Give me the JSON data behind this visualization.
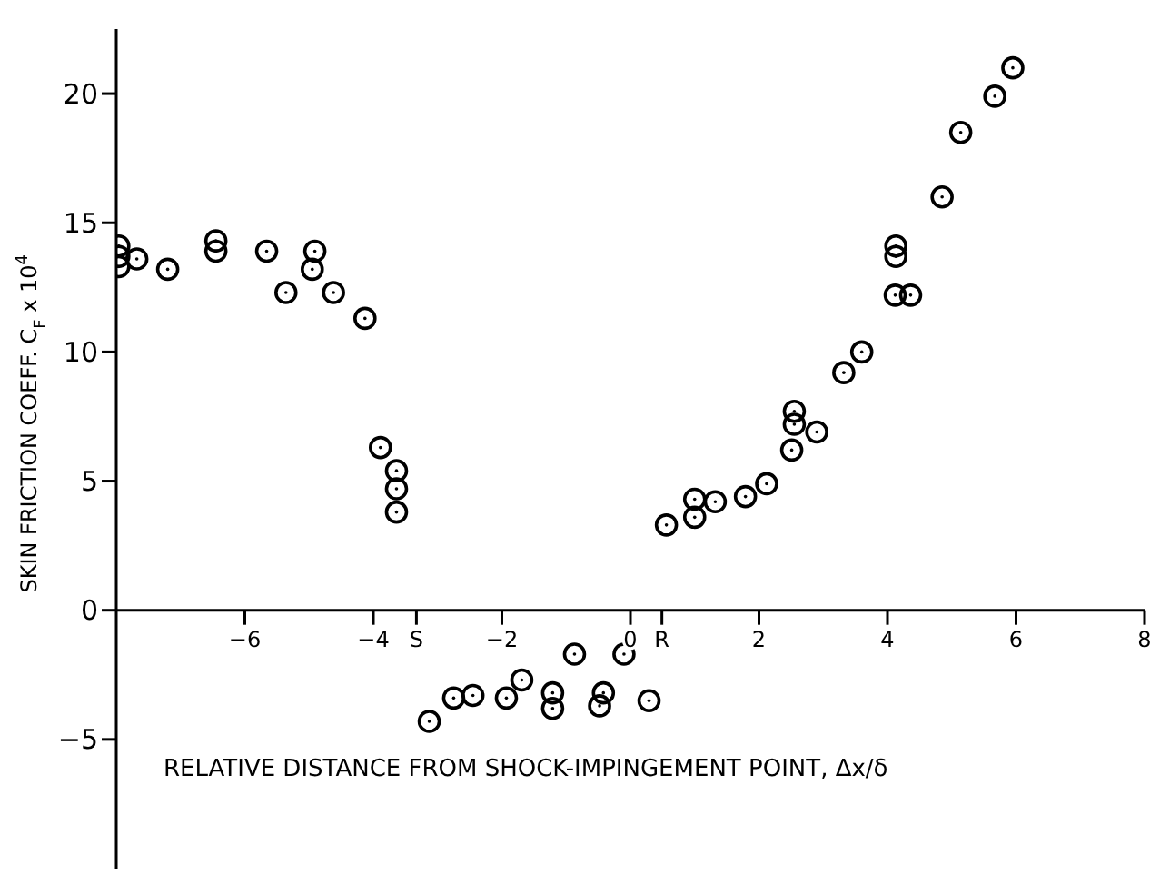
{
  "chart_data": {
    "type": "scatter",
    "xlabel": "RELATIVE DISTANCE FROM SHOCK-IMPINGEMENT POINT, Δx/δ",
    "ylabel": "SKIN FRICTION COEFF.  C$_{F}$ x 10$^{4}$",
    "x": [
      -7.96,
      -7.96,
      -7.96,
      -7.68,
      -7.2,
      -6.45,
      -6.45,
      -5.66,
      -5.36,
      -4.91,
      -4.95,
      -4.62,
      -4.13,
      -3.89,
      -3.64,
      -3.64,
      -3.64,
      -3.13,
      -2.75,
      -2.45,
      -1.93,
      -1.69,
      -1.21,
      -1.21,
      -0.87,
      -0.42,
      -0.48,
      -0.1,
      0.29,
      0.56,
      1.0,
      1.0,
      1.32,
      1.79,
      2.12,
      2.51,
      2.55,
      2.55,
      2.9,
      3.32,
      3.6,
      4.12,
      4.36,
      4.13,
      4.13,
      4.85,
      5.14,
      5.67,
      5.95
    ],
    "series": [
      {
        "color": "#000000",
        "values": [
          14.1,
          13.7,
          13.3,
          13.6,
          13.2,
          14.3,
          13.9,
          13.9,
          12.3,
          13.9,
          13.2,
          12.3,
          11.3,
          6.3,
          5.4,
          4.7,
          3.8,
          -4.3,
          -3.4,
          -3.3,
          -3.4,
          -2.7,
          -3.2,
          -3.8,
          -1.7,
          -3.2,
          -3.7,
          -1.7,
          -3.5,
          3.3,
          4.3,
          3.6,
          4.2,
          4.4,
          4.9,
          6.2,
          7.2,
          7.7,
          6.9,
          9.2,
          10.0,
          12.2,
          12.2,
          13.7,
          14.1,
          16.0,
          18.5,
          19.9,
          21.0
        ]
      }
    ],
    "xlim": [
      -8,
      8
    ],
    "ylim": [
      -10,
      22.5
    ],
    "xticks": [
      -6,
      -4,
      {
        "value": -3.33,
        "label": "S"
      },
      -2,
      0,
      {
        "value": 0.49,
        "label": "R"
      },
      2,
      4,
      6,
      8
    ],
    "yticks": [
      -5,
      0,
      5,
      10,
      15,
      20
    ],
    "marker": "circle"
  }
}
